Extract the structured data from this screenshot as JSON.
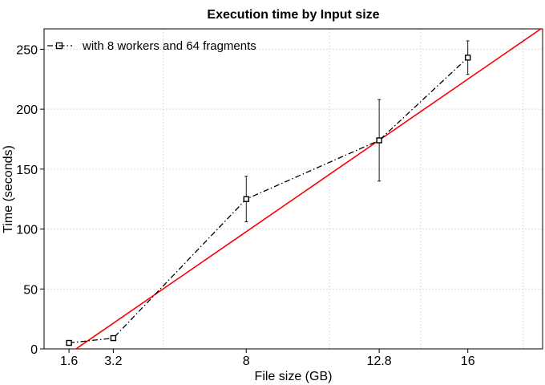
{
  "chart_data": {
    "type": "line",
    "title": "Execution time by Input size",
    "xlabel": "File size (GB)",
    "ylabel": "Time (seconds)",
    "xlim": [
      0.7,
      18.7
    ],
    "ylim": [
      0,
      267
    ],
    "x_ticks": [
      1.6,
      3.2,
      8,
      12.8,
      16
    ],
    "x_tick_labels": [
      "1.6",
      "3.2",
      "8",
      "12.8",
      "16"
    ],
    "x_minor_grid": [
      5,
      11,
      14.3,
      18
    ],
    "y_ticks": [
      0,
      50,
      100,
      150,
      200,
      250
    ],
    "y_tick_labels": [
      "0",
      "50",
      "100",
      "150",
      "200",
      "250"
    ],
    "grid": true,
    "legend_position": "top-left",
    "series": [
      {
        "name": "with 8 workers and 64 fragments",
        "x": [
          1.6,
          3.2,
          8,
          12.8,
          16
        ],
        "y": [
          5,
          9,
          125,
          174,
          243
        ],
        "error": [
          1,
          1.5,
          19,
          34,
          14
        ],
        "color": "#000000",
        "line_style": "dash-dot",
        "marker": "square"
      }
    ],
    "fit_line": {
      "x": [
        1.6,
        18.7
      ],
      "y": [
        -4,
        268
      ],
      "color": "#ff0000"
    }
  }
}
